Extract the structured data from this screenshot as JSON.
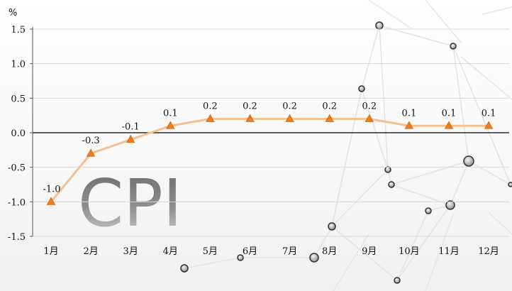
{
  "chart_data": {
    "type": "line",
    "title": "",
    "xlabel": "",
    "ylabel": "%",
    "watermark": "CPI",
    "categories": [
      "1月",
      "2月",
      "3月",
      "4月",
      "5月",
      "6月",
      "7月",
      "8月",
      "9月",
      "10月",
      "11月",
      "12月"
    ],
    "series": [
      {
        "values": [
          -1.0,
          -0.3,
          -0.1,
          0.1,
          0.2,
          0.2,
          0.2,
          0.2,
          0.2,
          0.1,
          0.1,
          0.1
        ]
      }
    ],
    "data_labels": [
      "-1.0",
      "-0.3",
      "-0.1",
      "0.1",
      "0.2",
      "0.2",
      "0.2",
      "0.2",
      "0.2",
      "0.1",
      "0.1",
      "0.1"
    ],
    "y_ticks": [
      "1.5",
      "1.0",
      "0.5",
      "0.0",
      "-0.5",
      "-1.0",
      "-1.5"
    ],
    "y_tick_values": [
      1.5,
      1.0,
      0.5,
      0.0,
      -0.5,
      -1.0,
      -1.5
    ],
    "ylim": [
      -1.5,
      1.5
    ],
    "grid": true,
    "legend": "none",
    "colors": {
      "line": "#f5c08e",
      "marker": "#f07d1c",
      "grid": "#d9d9d9",
      "zero_line": "#000000"
    }
  }
}
